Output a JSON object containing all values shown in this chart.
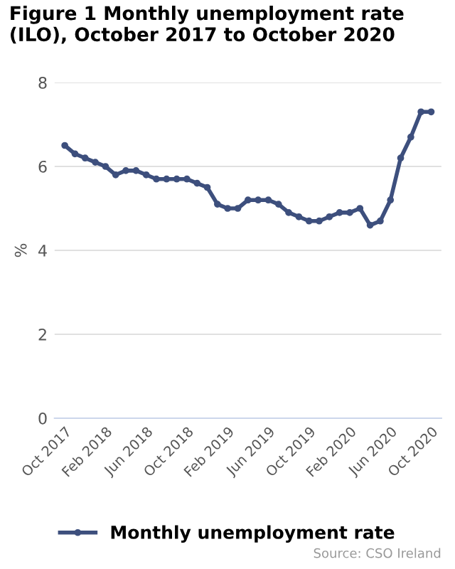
{
  "chart_data": {
    "type": "line",
    "title": "Figure 1 Monthly unemployment rate (ILO), October 2017 to October 2020",
    "ylabel": "%",
    "categories": [
      "Oct 2017",
      null,
      null,
      null,
      "Feb 2018",
      null,
      null,
      null,
      "Jun 2018",
      null,
      null,
      null,
      "Oct 2018",
      null,
      null,
      null,
      "Feb 2019",
      null,
      null,
      null,
      "Jun 2019",
      null,
      null,
      null,
      "Oct 2019",
      null,
      null,
      null,
      "Feb 2020",
      null,
      null,
      null,
      "Jun 2020",
      null,
      null,
      null,
      "Oct 2020"
    ],
    "series": [
      {
        "name": "Monthly unemployment rate",
        "color": "#3d4f7d",
        "values": [
          6.5,
          6.3,
          6.2,
          6.1,
          6.0,
          5.8,
          5.9,
          5.9,
          5.8,
          5.7,
          5.7,
          5.7,
          5.7,
          5.6,
          5.5,
          5.1,
          5.0,
          5.0,
          5.2,
          5.2,
          5.2,
          5.1,
          4.9,
          4.8,
          4.7,
          4.7,
          4.8,
          4.9,
          4.9,
          5.0,
          4.6,
          4.7,
          5.2,
          6.2,
          6.7,
          7.3,
          7.3
        ]
      }
    ],
    "ylim": [
      0,
      8
    ],
    "yticks": [
      0,
      2,
      4,
      6,
      8
    ],
    "grid": "y",
    "legend": "bottom",
    "marker": "circle",
    "line_style": "solid",
    "annotations": [
      "Source: CSO Ireland"
    ]
  }
}
